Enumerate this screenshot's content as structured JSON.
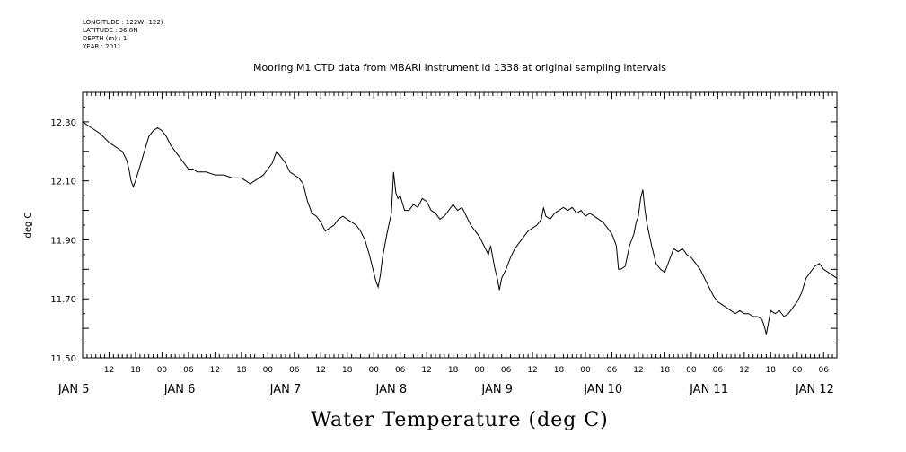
{
  "header": {
    "longitude": "LONGITUDE : 122W(-122)",
    "latitude": "LATITUDE : 36.8N",
    "depth": "DEPTH (m) : 1",
    "year": "YEAR : 2011"
  },
  "chart_data": {
    "type": "line",
    "title": "Mooring M1 CTD data from MBARI instrument id 1338 at original sampling intervals",
    "xlabel": "Water Temperature (deg C)",
    "ylabel": "deg C",
    "ylim": [
      11.5,
      12.4
    ],
    "yticks": [
      "12.30",
      "12.10",
      "11.90",
      "11.70",
      "11.50"
    ],
    "xlim_hours": [
      6,
      177
    ],
    "x_units": "hours after 2011-01-05 00:00",
    "hour_ticks": [
      "12",
      "18",
      "00",
      "06",
      "12",
      "18",
      "00",
      "06",
      "12",
      "18",
      "00",
      "06",
      "12",
      "18",
      "00",
      "06",
      "12",
      "18",
      "00",
      "06",
      "12",
      "18",
      "00",
      "06",
      "12",
      "18",
      "00",
      "06",
      "12",
      "18",
      "00",
      "06"
    ],
    "day_labels": [
      "JAN  5",
      "JAN  6",
      "JAN  7",
      "JAN  8",
      "JAN  9",
      "JAN 10",
      "JAN 11",
      "JAN 12"
    ],
    "grid": false,
    "series": [
      {
        "color": "#000000",
        "points": [
          [
            6,
            12.3
          ],
          [
            8,
            12.28
          ],
          [
            10,
            12.26
          ],
          [
            12,
            12.23
          ],
          [
            14,
            12.21
          ],
          [
            15,
            12.2
          ],
          [
            16,
            12.17
          ],
          [
            16.5,
            12.14
          ],
          [
            17,
            12.1
          ],
          [
            17.5,
            12.08
          ],
          [
            18,
            12.1
          ],
          [
            19,
            12.15
          ],
          [
            20,
            12.2
          ],
          [
            21,
            12.25
          ],
          [
            22,
            12.27
          ],
          [
            23,
            12.28
          ],
          [
            24,
            12.27
          ],
          [
            25,
            12.25
          ],
          [
            26,
            12.22
          ],
          [
            27,
            12.2
          ],
          [
            28,
            12.18
          ],
          [
            29,
            12.16
          ],
          [
            30,
            12.14
          ],
          [
            31,
            12.14
          ],
          [
            32,
            12.13
          ],
          [
            34,
            12.13
          ],
          [
            36,
            12.12
          ],
          [
            38,
            12.12
          ],
          [
            40,
            12.11
          ],
          [
            42,
            12.11
          ],
          [
            43,
            12.1
          ],
          [
            44,
            12.09
          ],
          [
            45,
            12.1
          ],
          [
            46,
            12.11
          ],
          [
            47,
            12.12
          ],
          [
            48,
            12.14
          ],
          [
            49,
            12.16
          ],
          [
            50,
            12.2
          ],
          [
            51,
            12.18
          ],
          [
            52,
            12.16
          ],
          [
            53,
            12.13
          ],
          [
            54,
            12.12
          ],
          [
            55,
            12.11
          ],
          [
            56,
            12.09
          ],
          [
            57,
            12.03
          ],
          [
            58,
            11.99
          ],
          [
            59,
            11.98
          ],
          [
            60,
            11.96
          ],
          [
            61,
            11.93
          ],
          [
            62,
            11.94
          ],
          [
            63,
            11.95
          ],
          [
            64,
            11.97
          ],
          [
            65,
            11.98
          ],
          [
            66,
            11.97
          ],
          [
            67,
            11.96
          ],
          [
            68,
            11.95
          ],
          [
            69,
            11.93
          ],
          [
            70,
            11.9
          ],
          [
            71,
            11.85
          ],
          [
            72,
            11.79
          ],
          [
            72.5,
            11.76
          ],
          [
            73,
            11.74
          ],
          [
            73.5,
            11.78
          ],
          [
            74,
            11.84
          ],
          [
            75,
            11.92
          ],
          [
            76,
            11.99
          ],
          [
            76.5,
            12.13
          ],
          [
            77,
            12.06
          ],
          [
            77.5,
            12.04
          ],
          [
            78,
            12.05
          ],
          [
            79,
            12.0
          ],
          [
            80,
            12.0
          ],
          [
            81,
            12.02
          ],
          [
            82,
            12.01
          ],
          [
            83,
            12.04
          ],
          [
            84,
            12.03
          ],
          [
            85,
            12.0
          ],
          [
            86,
            11.99
          ],
          [
            87,
            11.97
          ],
          [
            88,
            11.98
          ],
          [
            89,
            12.0
          ],
          [
            90,
            12.02
          ],
          [
            91,
            12.0
          ],
          [
            92,
            12.01
          ],
          [
            93,
            11.98
          ],
          [
            94,
            11.95
          ],
          [
            95,
            11.93
          ],
          [
            96,
            11.91
          ],
          [
            97,
            11.88
          ],
          [
            98,
            11.85
          ],
          [
            98.5,
            11.88
          ],
          [
            99,
            11.84
          ],
          [
            99.5,
            11.8
          ],
          [
            100,
            11.77
          ],
          [
            100.5,
            11.73
          ],
          [
            101,
            11.77
          ],
          [
            102,
            11.8
          ],
          [
            103,
            11.84
          ],
          [
            104,
            11.87
          ],
          [
            105,
            11.89
          ],
          [
            106,
            11.91
          ],
          [
            107,
            11.93
          ],
          [
            108,
            11.94
          ],
          [
            109,
            11.95
          ],
          [
            110,
            11.97
          ],
          [
            110.5,
            12.01
          ],
          [
            111,
            11.98
          ],
          [
            112,
            11.97
          ],
          [
            113,
            11.99
          ],
          [
            114,
            12.0
          ],
          [
            115,
            12.01
          ],
          [
            116,
            12.0
          ],
          [
            117,
            12.01
          ],
          [
            118,
            11.99
          ],
          [
            119,
            12.0
          ],
          [
            120,
            11.98
          ],
          [
            121,
            11.99
          ],
          [
            122,
            11.98
          ],
          [
            123,
            11.97
          ],
          [
            124,
            11.96
          ],
          [
            125,
            11.94
          ],
          [
            126,
            11.92
          ],
          [
            127,
            11.88
          ],
          [
            127.5,
            11.8
          ],
          [
            128,
            11.8
          ],
          [
            129,
            11.81
          ],
          [
            130,
            11.88
          ],
          [
            131,
            11.92
          ],
          [
            131.5,
            11.96
          ],
          [
            132,
            11.98
          ],
          [
            132.5,
            12.04
          ],
          [
            133,
            12.07
          ],
          [
            133.5,
            12.0
          ],
          [
            134,
            11.95
          ],
          [
            135,
            11.88
          ],
          [
            136,
            11.82
          ],
          [
            137,
            11.8
          ],
          [
            138,
            11.79
          ],
          [
            139,
            11.83
          ],
          [
            140,
            11.87
          ],
          [
            141,
            11.86
          ],
          [
            142,
            11.87
          ],
          [
            143,
            11.85
          ],
          [
            144,
            11.84
          ],
          [
            145,
            11.82
          ],
          [
            146,
            11.8
          ],
          [
            147,
            11.77
          ],
          [
            148,
            11.74
          ],
          [
            149,
            11.71
          ],
          [
            150,
            11.69
          ],
          [
            151,
            11.68
          ],
          [
            152,
            11.67
          ],
          [
            153,
            11.66
          ],
          [
            154,
            11.65
          ],
          [
            155,
            11.66
          ],
          [
            156,
            11.65
          ],
          [
            157,
            11.65
          ],
          [
            158,
            11.64
          ],
          [
            159,
            11.64
          ],
          [
            160,
            11.63
          ],
          [
            160.5,
            11.61
          ],
          [
            161,
            11.58
          ],
          [
            161.5,
            11.62
          ],
          [
            162,
            11.66
          ],
          [
            163,
            11.65
          ],
          [
            164,
            11.66
          ],
          [
            165,
            11.64
          ],
          [
            166,
            11.65
          ],
          [
            167,
            11.67
          ],
          [
            168,
            11.69
          ],
          [
            169,
            11.72
          ],
          [
            170,
            11.77
          ],
          [
            171,
            11.79
          ],
          [
            172,
            11.81
          ],
          [
            173,
            11.82
          ],
          [
            174,
            11.8
          ],
          [
            175,
            11.79
          ],
          [
            176,
            11.78
          ],
          [
            177,
            11.77
          ]
        ]
      }
    ]
  }
}
